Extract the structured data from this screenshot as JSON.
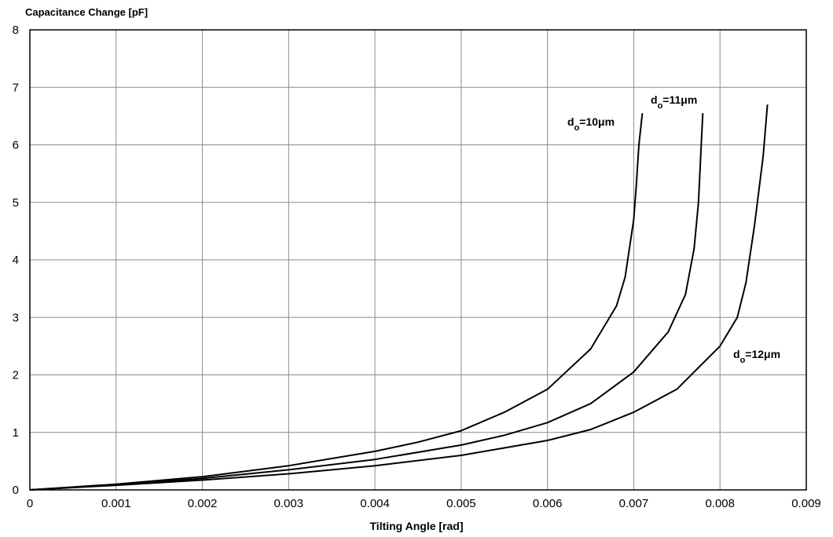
{
  "chart_data": {
    "type": "line",
    "title": "",
    "xlabel": "Tilting Angle [rad]",
    "ylabel": "Capacitance Change [pF]",
    "xlim": [
      0,
      0.009
    ],
    "ylim": [
      0,
      8
    ],
    "grid": true,
    "x_ticks": [
      "0",
      "0.001",
      "0.002",
      "0.003",
      "0.004",
      "0.005",
      "0.006",
      "0.007",
      "0.008",
      "0.009"
    ],
    "y_ticks": [
      "0",
      "1",
      "2",
      "3",
      "4",
      "5",
      "6",
      "7",
      "8"
    ],
    "series": [
      {
        "label_main": "d",
        "label_sub": "o",
        "label_tail": "=10μm",
        "x": [
          0,
          0.001,
          0.002,
          0.003,
          0.004,
          0.0045,
          0.005,
          0.0055,
          0.006,
          0.0065,
          0.0068,
          0.0069,
          0.007,
          0.00703,
          0.00706,
          0.0071
        ],
        "y": [
          0,
          0.1,
          0.23,
          0.42,
          0.67,
          0.83,
          1.03,
          1.35,
          1.75,
          2.45,
          3.2,
          3.7,
          4.7,
          5.3,
          6.0,
          6.55
        ]
      },
      {
        "label_main": "d",
        "label_sub": "o",
        "label_tail": "=11μm",
        "x": [
          0,
          0.001,
          0.002,
          0.003,
          0.004,
          0.005,
          0.0055,
          0.006,
          0.0065,
          0.007,
          0.0074,
          0.0076,
          0.0077,
          0.00775,
          0.0078
        ],
        "y": [
          0,
          0.09,
          0.2,
          0.35,
          0.53,
          0.78,
          0.95,
          1.17,
          1.5,
          2.05,
          2.75,
          3.4,
          4.2,
          5.0,
          6.55
        ]
      },
      {
        "label_main": "d",
        "label_sub": "o",
        "label_tail": "=12μm",
        "x": [
          0,
          0.001,
          0.002,
          0.003,
          0.004,
          0.005,
          0.006,
          0.0065,
          0.007,
          0.0075,
          0.008,
          0.0082,
          0.0083,
          0.0084,
          0.0085,
          0.00855
        ],
        "y": [
          0,
          0.08,
          0.17,
          0.28,
          0.42,
          0.6,
          0.86,
          1.05,
          1.35,
          1.75,
          2.5,
          3.0,
          3.6,
          4.6,
          5.8,
          6.7
        ]
      }
    ]
  }
}
